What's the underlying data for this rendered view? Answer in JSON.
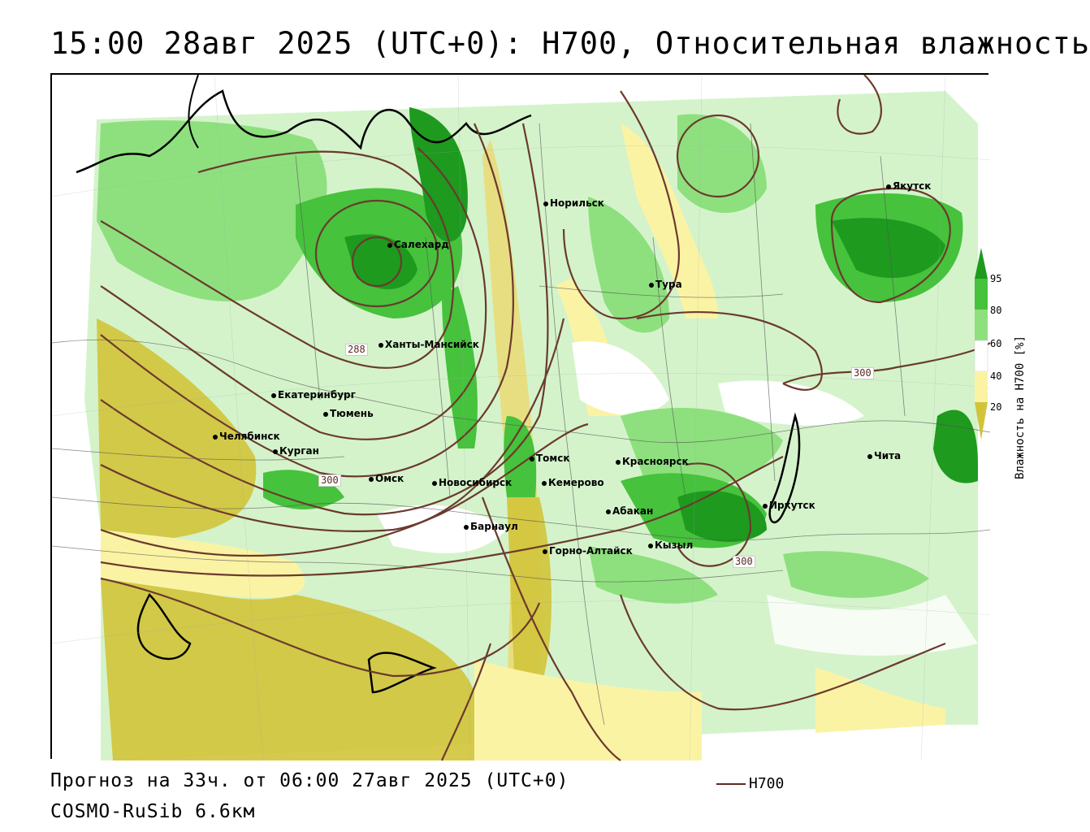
{
  "header": {
    "title": "15:00 28авг 2025 (UTC+0): H700, Относительная влажность"
  },
  "map": {
    "cities": [
      {
        "name": "Салехард"
      },
      {
        "name": "Норильск"
      },
      {
        "name": "Тура"
      },
      {
        "name": "Якутск"
      },
      {
        "name": "Ханты-Мансийск"
      },
      {
        "name": "Екатеринбург"
      },
      {
        "name": "Тюмень"
      },
      {
        "name": "Челябинск"
      },
      {
        "name": "Курган"
      },
      {
        "name": "Омск"
      },
      {
        "name": "Новосибирск"
      },
      {
        "name": "Томск"
      },
      {
        "name": "Кемерово"
      },
      {
        "name": "Барнаул"
      },
      {
        "name": "Горно-Алтайск"
      },
      {
        "name": "Красноярск"
      },
      {
        "name": "Абакан"
      },
      {
        "name": "Кызыл"
      },
      {
        "name": "Иркутск"
      },
      {
        "name": "Чита"
      }
    ],
    "isoline_labels": [
      "288",
      "300",
      "300",
      "300"
    ]
  },
  "colorbar": {
    "ticks": [
      "95",
      "80",
      "60",
      "40",
      "20"
    ],
    "label": "Влажность на Н700 [%]",
    "colors": {
      "very_dry": "#d2c43a",
      "dry": "#fbf3a4",
      "neutral": "#ffffff",
      "moist": "#c8f2c0",
      "humid": "#8ee07e",
      "wet": "#46c23c",
      "saturated": "#1e9a1e"
    }
  },
  "footer": {
    "forecast": "Прогноз на 33ч. от 06:00 27авг 2025 (UTC+0)",
    "model": "COSMO-RuSib 6.6км",
    "legend_label": "H700"
  }
}
